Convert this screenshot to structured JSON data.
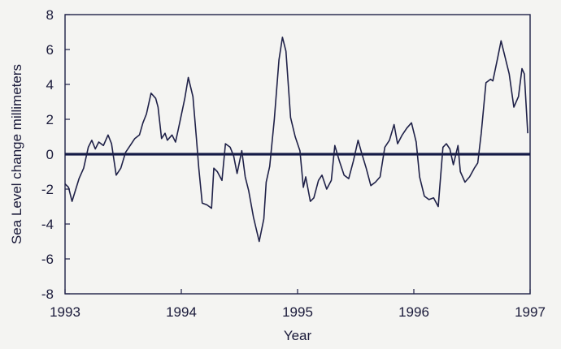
{
  "chart_data": {
    "type": "line",
    "title": "",
    "xlabel": "Year",
    "ylabel": "Sea Level change  millimeters",
    "xlim": [
      1993,
      1997
    ],
    "ylim": [
      -8,
      8
    ],
    "x_ticks": [
      1993,
      1994,
      1995,
      1996,
      1997
    ],
    "y_ticks": [
      8,
      6,
      4,
      2,
      0,
      -2,
      -4,
      -6,
      -8
    ],
    "grid": false,
    "reference_line": {
      "y": 0
    },
    "series": [
      {
        "points": [
          [
            1993.0,
            -1.7
          ],
          [
            1993.03,
            -1.9
          ],
          [
            1993.06,
            -2.7
          ],
          [
            1993.12,
            -1.4
          ],
          [
            1993.16,
            -0.8
          ],
          [
            1993.2,
            0.4
          ],
          [
            1993.23,
            0.8
          ],
          [
            1993.26,
            0.3
          ],
          [
            1993.29,
            0.7
          ],
          [
            1993.33,
            0.5
          ],
          [
            1993.37,
            1.1
          ],
          [
            1993.4,
            0.6
          ],
          [
            1993.44,
            -1.2
          ],
          [
            1993.48,
            -0.8
          ],
          [
            1993.52,
            0.1
          ],
          [
            1993.56,
            0.5
          ],
          [
            1993.6,
            0.9
          ],
          [
            1993.64,
            1.1
          ],
          [
            1993.67,
            1.8
          ],
          [
            1993.7,
            2.3
          ],
          [
            1993.74,
            3.5
          ],
          [
            1993.78,
            3.2
          ],
          [
            1993.8,
            2.7
          ],
          [
            1993.83,
            0.9
          ],
          [
            1993.86,
            1.2
          ],
          [
            1993.88,
            0.8
          ],
          [
            1993.92,
            1.1
          ],
          [
            1993.95,
            0.7
          ],
          [
            1993.98,
            1.6
          ],
          [
            1994.03,
            3.2
          ],
          [
            1994.06,
            4.4
          ],
          [
            1994.1,
            3.3
          ],
          [
            1994.13,
            0.9
          ],
          [
            1994.15,
            -0.8
          ],
          [
            1994.18,
            -2.8
          ],
          [
            1994.22,
            -2.9
          ],
          [
            1994.26,
            -3.1
          ],
          [
            1994.28,
            -0.8
          ],
          [
            1994.31,
            -1.0
          ],
          [
            1994.35,
            -1.5
          ],
          [
            1994.38,
            0.6
          ],
          [
            1994.42,
            0.4
          ],
          [
            1994.45,
            -0.1
          ],
          [
            1994.48,
            -1.1
          ],
          [
            1994.52,
            0.2
          ],
          [
            1994.55,
            -1.3
          ],
          [
            1994.58,
            -2.1
          ],
          [
            1994.62,
            -3.6
          ],
          [
            1994.67,
            -5.0
          ],
          [
            1994.71,
            -3.7
          ],
          [
            1994.73,
            -1.6
          ],
          [
            1994.76,
            -0.7
          ],
          [
            1994.8,
            2.0
          ],
          [
            1994.84,
            5.4
          ],
          [
            1994.87,
            6.7
          ],
          [
            1994.9,
            5.9
          ],
          [
            1994.94,
            2.1
          ],
          [
            1994.98,
            1.0
          ],
          [
            1995.02,
            0.2
          ],
          [
            1995.05,
            -1.9
          ],
          [
            1995.07,
            -1.3
          ],
          [
            1995.11,
            -2.7
          ],
          [
            1995.14,
            -2.5
          ],
          [
            1995.18,
            -1.5
          ],
          [
            1995.21,
            -1.2
          ],
          [
            1995.25,
            -2.0
          ],
          [
            1995.29,
            -1.5
          ],
          [
            1995.32,
            0.5
          ],
          [
            1995.36,
            -0.4
          ],
          [
            1995.4,
            -1.2
          ],
          [
            1995.44,
            -1.4
          ],
          [
            1995.48,
            -0.4
          ],
          [
            1995.52,
            0.8
          ],
          [
            1995.55,
            0.1
          ],
          [
            1995.59,
            -0.8
          ],
          [
            1995.63,
            -1.8
          ],
          [
            1995.67,
            -1.6
          ],
          [
            1995.71,
            -1.3
          ],
          [
            1995.75,
            0.4
          ],
          [
            1995.79,
            0.8
          ],
          [
            1995.83,
            1.7
          ],
          [
            1995.86,
            0.6
          ],
          [
            1995.9,
            1.1
          ],
          [
            1995.94,
            1.5
          ],
          [
            1995.98,
            1.8
          ],
          [
            1996.02,
            0.7
          ],
          [
            1996.05,
            -1.3
          ],
          [
            1996.09,
            -2.4
          ],
          [
            1996.13,
            -2.6
          ],
          [
            1996.17,
            -2.5
          ],
          [
            1996.21,
            -3.0
          ],
          [
            1996.25,
            0.4
          ],
          [
            1996.28,
            0.6
          ],
          [
            1996.31,
            0.3
          ],
          [
            1996.34,
            -0.6
          ],
          [
            1996.38,
            0.5
          ],
          [
            1996.4,
            -1.0
          ],
          [
            1996.44,
            -1.6
          ],
          [
            1996.48,
            -1.3
          ],
          [
            1996.52,
            -0.8
          ],
          [
            1996.55,
            -0.5
          ],
          [
            1996.58,
            1.2
          ],
          [
            1996.62,
            4.1
          ],
          [
            1996.66,
            4.3
          ],
          [
            1996.68,
            4.2
          ],
          [
            1996.72,
            5.5
          ],
          [
            1996.75,
            6.5
          ],
          [
            1996.78,
            5.7
          ],
          [
            1996.82,
            4.6
          ],
          [
            1996.86,
            2.7
          ],
          [
            1996.9,
            3.3
          ],
          [
            1996.93,
            4.9
          ],
          [
            1996.95,
            4.6
          ],
          [
            1996.98,
            1.2
          ]
        ]
      }
    ]
  },
  "colors": {
    "line": "#1f2148",
    "zero_line": "#141a46",
    "axes": "#1f2148",
    "text": "#1a1a3a",
    "background": "#f4f4f2"
  }
}
